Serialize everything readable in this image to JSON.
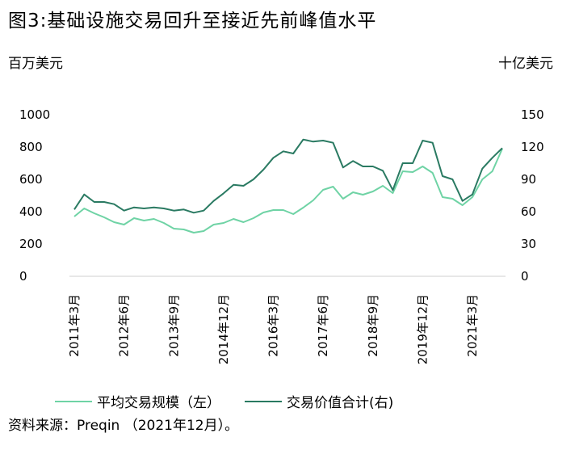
{
  "chart_data": {
    "type": "line",
    "title": "图3:基础设施交易回升至接近先前峰值水平",
    "ylabel_left": "百万美元",
    "ylabel_right": "十亿美元",
    "ylim_left": [
      0,
      1000
    ],
    "ylim_right": [
      0,
      150
    ],
    "yticks_left": [
      "1000",
      "800",
      "600",
      "400",
      "200",
      "0"
    ],
    "yticks_right": [
      "150",
      "120",
      "90",
      "60",
      "30",
      "0"
    ],
    "x_labels": [
      "2011年3月",
      "2012年6月",
      "2013年9月",
      "2014年12月",
      "2016年3月",
      "2017年6月",
      "2018年9月",
      "2019年12月",
      "2021年3月"
    ],
    "x": [
      "2011Q1",
      "2011Q2",
      "2011Q3",
      "2011Q4",
      "2012Q1",
      "2012Q2",
      "2012Q3",
      "2012Q4",
      "2013Q1",
      "2013Q2",
      "2013Q3",
      "2013Q4",
      "2014Q1",
      "2014Q2",
      "2014Q3",
      "2014Q4",
      "2015Q1",
      "2015Q2",
      "2015Q3",
      "2015Q4",
      "2016Q1",
      "2016Q2",
      "2016Q3",
      "2016Q4",
      "2017Q1",
      "2017Q2",
      "2017Q3",
      "2017Q4",
      "2018Q1",
      "2018Q2",
      "2018Q3",
      "2018Q4",
      "2019Q1",
      "2019Q2",
      "2019Q3",
      "2019Q4",
      "2020Q1",
      "2020Q2",
      "2020Q3",
      "2020Q4",
      "2021Q1",
      "2021Q2",
      "2021Q3",
      "2021Q4"
    ],
    "series": [
      {
        "name": "平均交易规模（左）",
        "axis": "left",
        "color": "#6fd3a5",
        "values": [
          370,
          420,
          390,
          365,
          335,
          320,
          360,
          345,
          355,
          330,
          295,
          290,
          270,
          280,
          320,
          330,
          355,
          335,
          360,
          395,
          410,
          410,
          385,
          425,
          470,
          535,
          555,
          480,
          520,
          505,
          525,
          560,
          515,
          650,
          645,
          680,
          640,
          490,
          480,
          440,
          490,
          600,
          650,
          790
        ]
      },
      {
        "name": "交易价值合计(右)",
        "axis": "right",
        "color": "#2a7a62",
        "values": [
          62,
          76,
          69,
          69,
          67,
          61,
          64,
          63,
          64,
          63,
          61,
          62,
          59,
          61,
          70,
          77,
          85,
          84,
          90,
          99,
          110,
          116,
          114,
          127,
          125,
          126,
          124,
          101,
          107,
          102,
          102,
          98,
          80,
          105,
          105,
          126,
          124,
          93,
          90,
          70,
          76,
          100,
          110,
          119
        ]
      }
    ]
  },
  "legend": {
    "left_label": "平均交易规模（左）",
    "right_label": "交易价值合计(右)"
  },
  "source": "资料来源：Preqin （2021年12月）。"
}
